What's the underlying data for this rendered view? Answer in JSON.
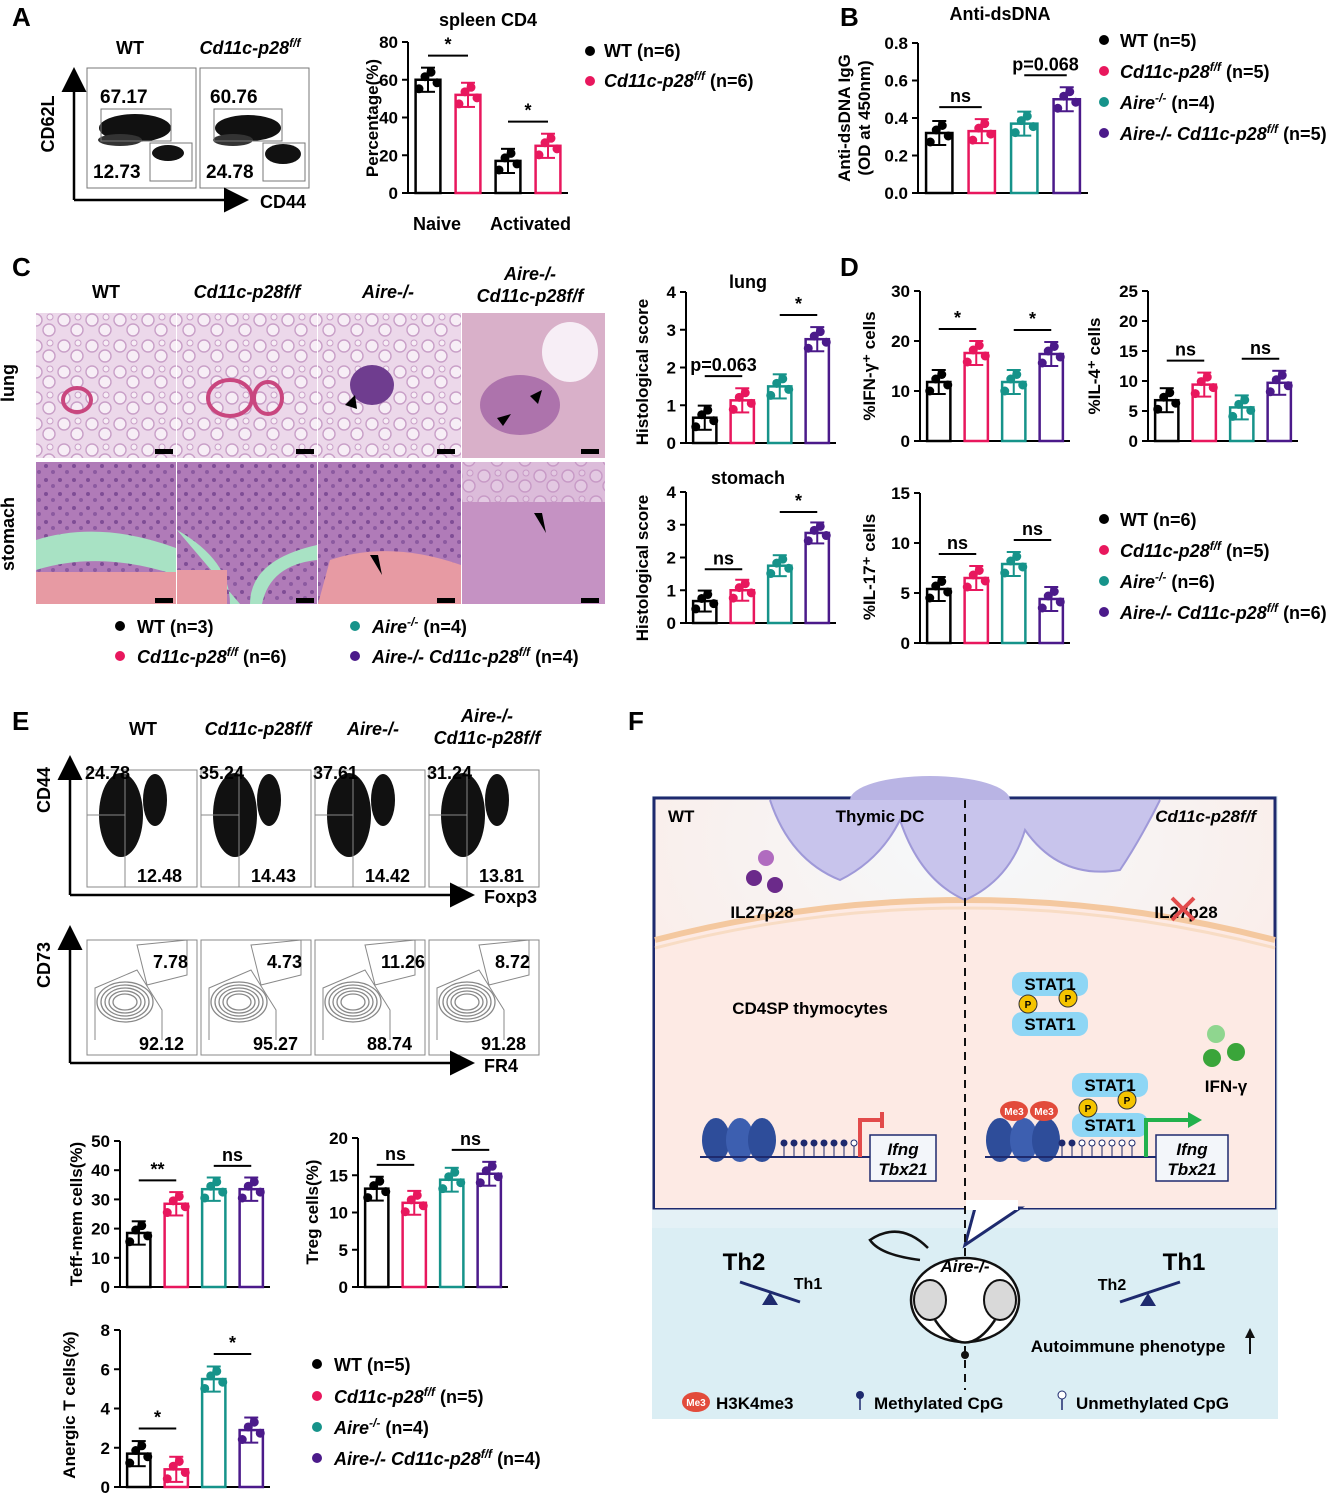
{
  "panels": {
    "A": {
      "label": "A",
      "flow": {
        "groups": [
          "WT",
          "Cd11c-p28"
        ],
        "group_sup": [
          "",
          "f/f"
        ],
        "naive": [
          "67.17",
          "60.76"
        ],
        "activated": [
          "12.73",
          "24.78"
        ],
        "y_axis": "CD62L",
        "x_axis": "CD44"
      },
      "bar": {
        "title": "spleen CD4",
        "ylabel": "Percentage(%)",
        "yticks": [
          "0",
          "20",
          "40",
          "60",
          "80"
        ],
        "categories": [
          "Naive",
          "Activated"
        ],
        "sig": [
          "*",
          "*"
        ],
        "legend": [
          {
            "name": "WT",
            "sup": "",
            "n": "(n=6)",
            "color": "#000000"
          },
          {
            "name": "Cd11c-p28",
            "sup": "f/f",
            "n": "(n=6)",
            "color": "#e8175d"
          }
        ]
      }
    },
    "B": {
      "label": "B",
      "title": "Anti-dsDNA",
      "ylabel1": "Anti-dsDNA IgG",
      "ylabel2": "(OD at 450nm)",
      "yticks": [
        "0.0",
        "0.2",
        "0.4",
        "0.6",
        "0.8"
      ],
      "sig": [
        "ns",
        "p=0.068"
      ],
      "legend": [
        {
          "name": "WT",
          "sup": "",
          "n": "(n=5)",
          "color": "#000000"
        },
        {
          "name": "Cd11c-p28",
          "sup": "f/f",
          "n": "(n=5)",
          "color": "#e8175d"
        },
        {
          "name": "Aire",
          "sup": "-/-",
          "n": "(n=4)",
          "color": "#16938a"
        },
        {
          "name": "Aire-/- Cd11c-p28",
          "sup": "f/f",
          "n": "(n=5)",
          "color": "#4b1a8a"
        }
      ]
    },
    "C": {
      "label": "C",
      "cols": [
        "WT",
        "Cd11c-p28f/f",
        "Aire-/-",
        "Aire-/-",
        "Cd11c-p28f/f"
      ],
      "rows": [
        "lung",
        "stomach"
      ],
      "legend": [
        {
          "name": "WT",
          "sup": "",
          "n": "(n=3)"
        },
        {
          "name": "Aire",
          "sup": "-/-",
          "n": "(n=4)"
        },
        {
          "name": "Cd11c-p28",
          "sup": "f/f",
          "n": "(n=6)"
        },
        {
          "name": "Aire-/- Cd11c-p28",
          "sup": "f/f",
          "n": "(n=4)"
        }
      ],
      "lung_title": "lung",
      "stomach_title": "stomach",
      "ylabel": "Histological score",
      "yticks": [
        "0",
        "1",
        "2",
        "3",
        "4"
      ],
      "lung_sig": [
        "p=0.063",
        "*"
      ],
      "stomach_sig": [
        "ns",
        "*"
      ]
    },
    "D": {
      "label": "D",
      "ifn_label": "%IFN-γ⁺ cells",
      "il4_label": "%IL-4⁺ cells",
      "il17_label": "%IL-17⁺ cells",
      "ifn_ticks": [
        "0",
        "10",
        "20",
        "30"
      ],
      "il4_ticks": [
        "0",
        "5",
        "10",
        "15",
        "20",
        "25"
      ],
      "il17_ticks": [
        "0",
        "5",
        "10",
        "15"
      ],
      "ifn_sig": [
        "*",
        "*"
      ],
      "il4_sig": [
        "ns",
        "ns"
      ],
      "il17_sig": [
        "ns",
        "ns"
      ],
      "legend": [
        {
          "name": "WT",
          "sup": "",
          "n": "(n=6)"
        },
        {
          "name": "Cd11c-p28",
          "sup": "f/f",
          "n": "(n=5)"
        },
        {
          "name": "Aire",
          "sup": "-/-",
          "n": "(n=6)"
        },
        {
          "name": "Aire-/- Cd11c-p28",
          "sup": "f/f",
          "n": "(n=6)"
        }
      ]
    },
    "E": {
      "label": "E",
      "cols": [
        "WT",
        "Cd11c-p28f/f",
        "Aire-/-",
        "Aire-/-",
        "Cd11c-p28f/f"
      ],
      "cd44_top": [
        "24.78",
        "35.24",
        "37.61",
        "31.24"
      ],
      "cd44_bottom": [
        "12.48",
        "14.43",
        "14.42",
        "13.81"
      ],
      "cd73_top": [
        "7.78",
        "4.73",
        "11.26",
        "8.72"
      ],
      "cd73_bottom": [
        "92.12",
        "95.27",
        "88.74",
        "91.28"
      ],
      "axis1_y": "CD44",
      "axis1_x": "Foxp3",
      "axis2_y": "CD73",
      "axis2_x": "FR4",
      "teff_label": "Teff-mem cells(%)",
      "teff_ticks": [
        "0",
        "10",
        "20",
        "30",
        "40",
        "50"
      ],
      "teff_sig": [
        "**",
        "ns"
      ],
      "treg_label": "Treg cells(%)",
      "treg_ticks": [
        "0",
        "5",
        "10",
        "15",
        "20"
      ],
      "treg_sig": [
        "ns",
        "ns"
      ],
      "anergic_label": "Anergic T cells(%)",
      "anergic_ticks": [
        "0",
        "2",
        "4",
        "6",
        "8"
      ],
      "anergic_sig": [
        "*",
        "*"
      ],
      "legend": [
        {
          "name": "WT",
          "sup": "",
          "n": "(n=5)"
        },
        {
          "name": "Cd11c-p28",
          "sup": "f/f",
          "n": "(n=5)"
        },
        {
          "name": "Aire",
          "sup": "-/-",
          "n": "(n=4)"
        },
        {
          "name": "Aire-/- Cd11c-p28",
          "sup": "f/f",
          "n": "(n=4)"
        }
      ]
    },
    "F": {
      "label": "F",
      "wt": "WT",
      "ko": "Cd11c-p28f/f",
      "thymic_dc": "Thymic DC",
      "il27": "IL27p28",
      "il27_ko": "IL27p28",
      "cd4sp": "CD4SP thymocytes",
      "stat1": "STAT1",
      "p": "P",
      "ifng": "Ifng",
      "tbx21": "Tbx21",
      "ifn_gamma": "IFN-γ",
      "me3": "Me3",
      "th2": "Th2",
      "th1": "Th1",
      "aire": "Aire-/-",
      "autoimmune": "Autoimmune phenotype",
      "leg_h3k4": "H3K4me3",
      "leg_meth": "Methylated CpG",
      "leg_unmeth": "Unmethylated CpG"
    }
  },
  "chart_data": [
    {
      "type": "bar",
      "title": "spleen CD4",
      "ylabel": "Percentage(%)",
      "ylim": [
        0,
        80
      ],
      "categories": [
        "Naive",
        "Activated"
      ],
      "series": [
        {
          "name": "WT (n=6)",
          "values": [
            60,
            17
          ]
        },
        {
          "name": "Cd11c-p28f/f (n=6)",
          "values": [
            52,
            25
          ]
        }
      ]
    },
    {
      "type": "bar",
      "title": "Anti-dsDNA",
      "ylabel": "Anti-dsDNA IgG (OD at 450nm)",
      "ylim": [
        0,
        0.8
      ],
      "categories": [
        "WT",
        "Cd11c-p28f/f",
        "Aire-/-",
        "Aire-/- Cd11c-p28f/f"
      ],
      "values": [
        0.32,
        0.33,
        0.37,
        0.5
      ]
    },
    {
      "type": "bar",
      "title": "lung",
      "ylabel": "Histological score",
      "ylim": [
        0,
        4
      ],
      "categories": [
        "WT",
        "Cd11c-p28f/f",
        "Aire-/-",
        "Aire-/- Cd11c-p28f/f"
      ],
      "values": [
        0.67,
        1.13,
        1.5,
        2.75
      ]
    },
    {
      "type": "bar",
      "title": "stomach",
      "ylabel": "Histological score",
      "ylim": [
        0,
        4
      ],
      "categories": [
        "WT",
        "Cd11c-p28f/f",
        "Aire-/-",
        "Aire-/- Cd11c-p28f/f"
      ],
      "values": [
        0.67,
        1.0,
        1.75,
        2.75
      ]
    },
    {
      "type": "bar",
      "ylabel": "%IFN-γ⁺ cells",
      "ylim": [
        0,
        30
      ],
      "categories": [
        "WT",
        "Cd11c-p28f/f",
        "Aire-/-",
        "Aire-/- Cd11c-p28f/f"
      ],
      "values": [
        11.8,
        17.6,
        11.8,
        17.4
      ]
    },
    {
      "type": "bar",
      "ylabel": "%IL-4⁺ cells",
      "ylim": [
        0,
        25
      ],
      "categories": [
        "WT",
        "Cd11c-p28f/f",
        "Aire-/-",
        "Aire-/- Cd11c-p28f/f"
      ],
      "values": [
        6.8,
        9.4,
        5.6,
        9.7
      ]
    },
    {
      "type": "bar",
      "ylabel": "%IL-17⁺ cells",
      "ylim": [
        0,
        15
      ],
      "categories": [
        "WT",
        "Cd11c-p28f/f",
        "Aire-/-",
        "Aire-/- Cd11c-p28f/f"
      ],
      "values": [
        5.4,
        6.5,
        7.9,
        4.4
      ]
    },
    {
      "type": "bar",
      "ylabel": "Teff-mem cells(%)",
      "ylim": [
        0,
        50
      ],
      "categories": [
        "WT",
        "Cd11c-p28f/f",
        "Aire-/-",
        "Aire-/- Cd11c-p28f/f"
      ],
      "values": [
        18.5,
        28.5,
        33.5,
        33.5
      ]
    },
    {
      "type": "bar",
      "ylabel": "Treg cells(%)",
      "ylim": [
        0,
        20
      ],
      "categories": [
        "WT",
        "Cd11c-p28f/f",
        "Aire-/-",
        "Aire-/- Cd11c-p28f/f"
      ],
      "values": [
        13.2,
        11.3,
        14.4,
        15.2
      ]
    },
    {
      "type": "bar",
      "ylabel": "Anergic T cells(%)",
      "ylim": [
        0,
        8
      ],
      "categories": [
        "WT",
        "Cd11c-p28f/f",
        "Aire-/-",
        "Aire-/- Cd11c-p28f/f"
      ],
      "values": [
        1.7,
        0.9,
        5.5,
        2.9
      ]
    }
  ],
  "colors": {
    "wt": "#000000",
    "ko": "#e8175d",
    "aire": "#16938a",
    "dko": "#4b1a8a"
  }
}
